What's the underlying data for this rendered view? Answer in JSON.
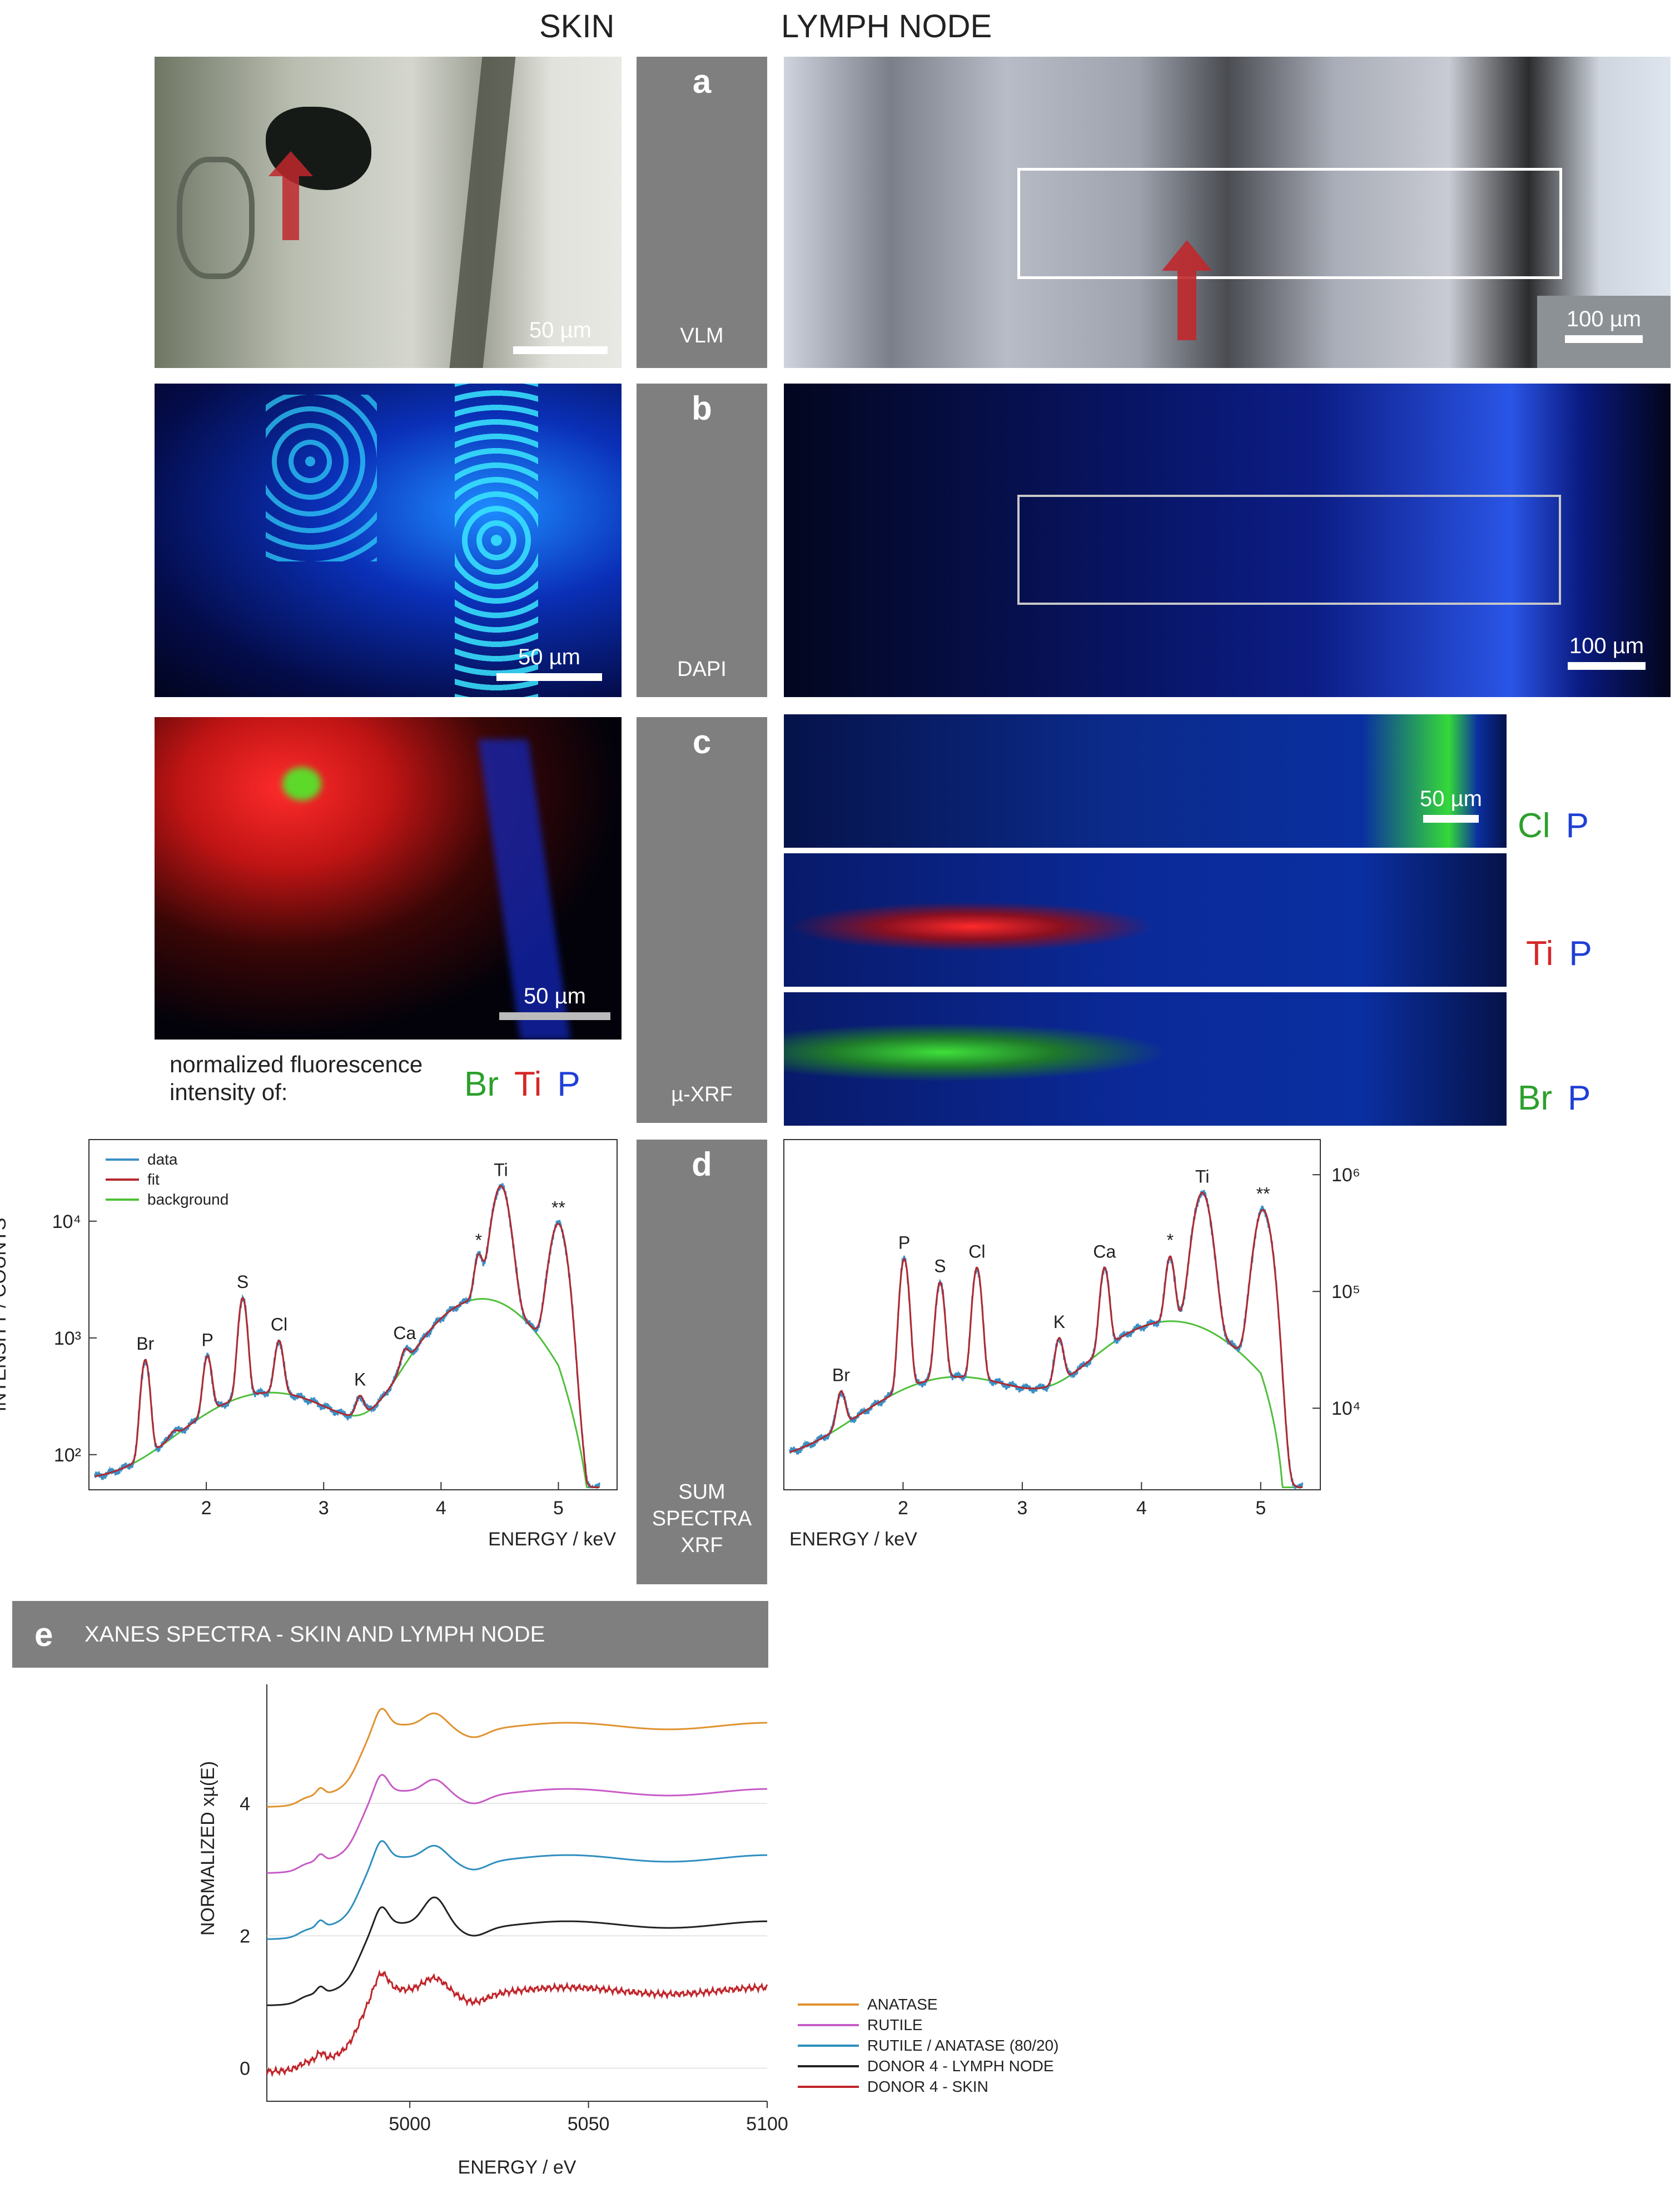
{
  "columns": {
    "skin": "SKIN",
    "lymph": "LYMPH NODE"
  },
  "panels": {
    "a": {
      "letter": "a",
      "caption": "VLM",
      "skin_scale": "50 µm",
      "lymph_scale": "100 µm"
    },
    "b": {
      "letter": "b",
      "caption": "DAPI",
      "skin_scale": "50 µm",
      "lymph_scale": "100 µm"
    },
    "c": {
      "letter": "c",
      "caption": "µ-XRF",
      "skin_scale": "50 µm",
      "lymph_scale": "50 µm",
      "fluor_label_line1": "normalized fluorescence",
      "fluor_label_line2": "intensity of:",
      "skin_elems": [
        {
          "t": "Br",
          "c": "#2ca02c"
        },
        {
          "t": "Ti",
          "c": "#d62728"
        },
        {
          "t": "P",
          "c": "#1f3fd6"
        }
      ],
      "lymph_rows": [
        [
          {
            "t": "Cl",
            "c": "#2ca02c"
          },
          {
            "t": "P",
            "c": "#1f3fd6"
          }
        ],
        [
          {
            "t": "Ti",
            "c": "#d62728"
          },
          {
            "t": "P",
            "c": "#1f3fd6"
          }
        ],
        [
          {
            "t": "Br",
            "c": "#2ca02c"
          },
          {
            "t": "P",
            "c": "#1f3fd6"
          }
        ]
      ]
    },
    "d": {
      "letter": "d",
      "caption_lines": [
        "SUM",
        "SPECTRA",
        "XRF"
      ]
    },
    "e": {
      "letter": "e",
      "title": "XANES SPECTRA - SKIN AND LYMPH NODE"
    }
  },
  "chart_data": [
    {
      "type": "line",
      "panel": "d-skin",
      "xlabel": "ENERGY / keV",
      "ylabel": "INTENSITY / COUNTS",
      "yscale": "log",
      "xlim": [
        1.0,
        5.5
      ],
      "ylim": [
        50,
        50000
      ],
      "xticks": [
        2,
        3,
        4,
        5
      ],
      "yticks": [
        {
          "v": 100,
          "l": "10²"
        },
        {
          "v": 1000,
          "l": "10³"
        },
        {
          "v": 10000,
          "l": "10⁴"
        }
      ],
      "legend": [
        "data",
        "fit",
        "background"
      ],
      "legend_position": "top-left",
      "colors": {
        "data": "#3b8fc4",
        "fit": "#b5282e",
        "background": "#4fbf3a"
      },
      "background": {
        "base": 80,
        "peak_x": 2.55,
        "peak_v": 280,
        "dip_x": 3.1,
        "dip_v": 230,
        "peak2_x": 4.3,
        "peak2_v": 2100,
        "end_x": 5.3
      },
      "peaks": [
        {
          "x": 1.48,
          "v": 650,
          "label": "Br"
        },
        {
          "x": 1.72,
          "v": 160,
          "label": ""
        },
        {
          "x": 2.01,
          "v": 700,
          "label": "P"
        },
        {
          "x": 2.31,
          "v": 2200,
          "label": "S"
        },
        {
          "x": 2.62,
          "v": 950,
          "label": "Cl"
        },
        {
          "x": 3.31,
          "v": 320,
          "label": "K"
        },
        {
          "x": 3.69,
          "v": 800,
          "label": "Ca"
        },
        {
          "x": 4.32,
          "v": 5000,
          "label": "*"
        },
        {
          "x": 4.51,
          "v": 20000,
          "label": "Ti"
        },
        {
          "x": 5.0,
          "v": 9500,
          "label": "**"
        }
      ]
    },
    {
      "type": "line",
      "panel": "d-lymph",
      "xlabel": "ENERGY / keV",
      "yscale": "log",
      "yaxis_side": "right",
      "xlim": [
        1.0,
        5.5
      ],
      "ylim": [
        2000,
        2000000
      ],
      "xticks": [
        2,
        3,
        4,
        5
      ],
      "yticks": [
        {
          "v": 10000,
          "l": "10⁴"
        },
        {
          "v": 100000,
          "l": "10⁵"
        },
        {
          "v": 1000000,
          "l": "10⁶"
        }
      ],
      "colors": {
        "data": "#3b8fc4",
        "fit": "#b5282e",
        "background": "#4fbf3a"
      },
      "peaks": [
        {
          "x": 1.48,
          "v": 14000,
          "label": "Br"
        },
        {
          "x": 2.01,
          "v": 190000,
          "label": "P"
        },
        {
          "x": 2.31,
          "v": 120000,
          "label": "S"
        },
        {
          "x": 2.62,
          "v": 160000,
          "label": "Cl"
        },
        {
          "x": 3.31,
          "v": 40000,
          "label": "K"
        },
        {
          "x": 3.69,
          "v": 160000,
          "label": "Ca"
        },
        {
          "x": 4.24,
          "v": 200000,
          "label": "*"
        },
        {
          "x": 4.51,
          "v": 700000,
          "label": "Ti"
        },
        {
          "x": 5.02,
          "v": 500000,
          "label": "**"
        }
      ]
    },
    {
      "type": "line",
      "panel": "e",
      "xlabel": "ENERGY / eV",
      "ylabel": "NORMALIZED xµ(E)",
      "xlim": [
        4960,
        5100
      ],
      "ylim": [
        -0.5,
        5.8
      ],
      "xticks": [
        5000,
        5050,
        5100
      ],
      "yticks": [
        0,
        2,
        4
      ],
      "legend_position": "bottom-right",
      "series": [
        {
          "name": "ANATASE",
          "color": "#e0922f",
          "offset": 4
        },
        {
          "name": "RUTILE",
          "color": "#c75bc7",
          "offset": 3
        },
        {
          "name": "RUTILE / ANATASE (80/20)",
          "color": "#2f8fbf",
          "offset": 2
        },
        {
          "name": "DONOR 4 - LYMPH NODE",
          "color": "#222222",
          "offset": 1
        },
        {
          "name": "DONOR 4 - SKIN",
          "color": "#c0242a",
          "offset": 0
        }
      ]
    }
  ]
}
